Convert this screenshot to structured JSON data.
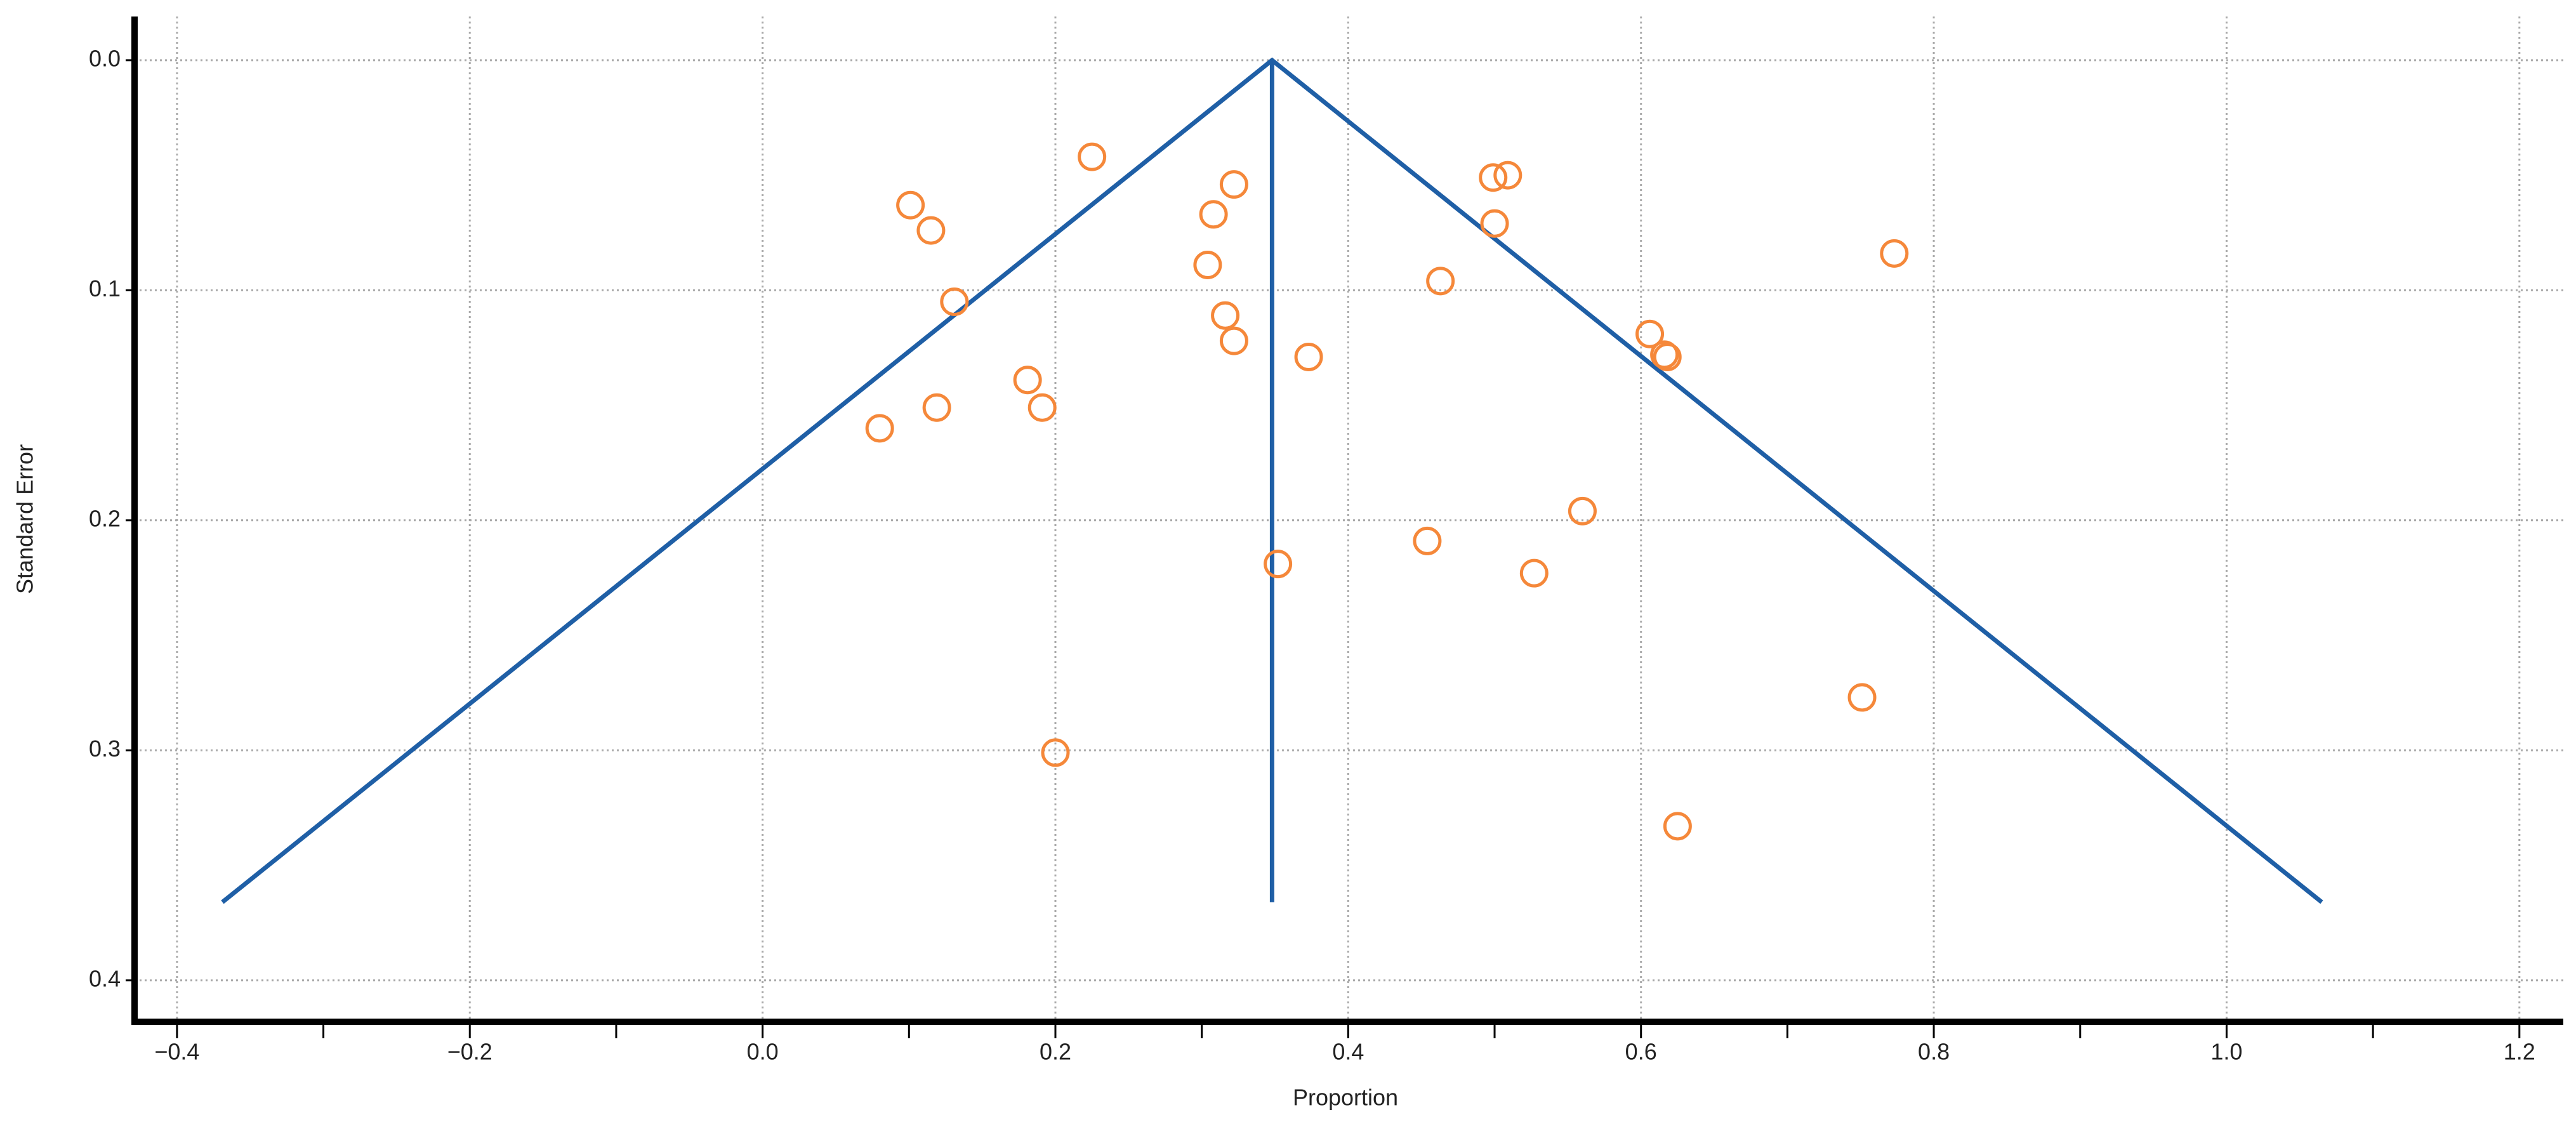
{
  "chart_data": {
    "type": "scatter",
    "x_label": "Proportion",
    "y_label": "Standard Error",
    "xlim": [
      -0.429,
      1.23
    ],
    "ylim": [
      -0.019,
      0.418
    ],
    "y_inverted": true,
    "grid": true,
    "xticks": [
      {
        "value": -0.4,
        "label": "−0.4"
      },
      {
        "value": -0.2,
        "label": "−0.2"
      },
      {
        "value": 0,
        "label": "0.0"
      },
      0.2,
      0.4,
      0.6,
      0.8,
      {
        "value": 1,
        "label": "1.0"
      },
      1.2
    ],
    "xminorticks": [
      -0.3,
      -0.1,
      0.1,
      0.3,
      0.5,
      0.7,
      0.9,
      1.1
    ],
    "yticks": [
      {
        "value": 0,
        "label": "0.0"
      },
      0.1,
      0.2,
      0.3,
      0.4
    ],
    "points": {
      "color": "#f5883a",
      "x": [
        0.225,
        0.101,
        0.115,
        0.131,
        0.08,
        0.119,
        0.181,
        0.191,
        0.2,
        0.322,
        0.308,
        0.304,
        0.316,
        0.322,
        0.373,
        0.352,
        0.499,
        0.509,
        0.5,
        0.463,
        0.606,
        0.616,
        0.618,
        0.454,
        0.56,
        0.527,
        0.773,
        0.751,
        0.625
      ],
      "y": [
        0.042,
        0.063,
        0.074,
        0.105,
        0.16,
        0.151,
        0.139,
        0.151,
        0.301,
        0.054,
        0.067,
        0.089,
        0.111,
        0.122,
        0.129,
        0.219,
        0.051,
        0.05,
        0.071,
        0.096,
        0.119,
        0.128,
        0.129,
        0.209,
        0.196,
        0.223,
        0.084,
        0.277,
        0.333
      ]
    },
    "lines": [
      {
        "color": "#1f5fa6",
        "x": [
          -0.369,
          0.348,
          1.065
        ],
        "y": [
          0.366,
          0,
          0.366
        ]
      },
      {
        "color": "#1f5fa6",
        "x": [
          0.348,
          0.348
        ],
        "y": [
          0,
          0.366
        ]
      }
    ]
  }
}
